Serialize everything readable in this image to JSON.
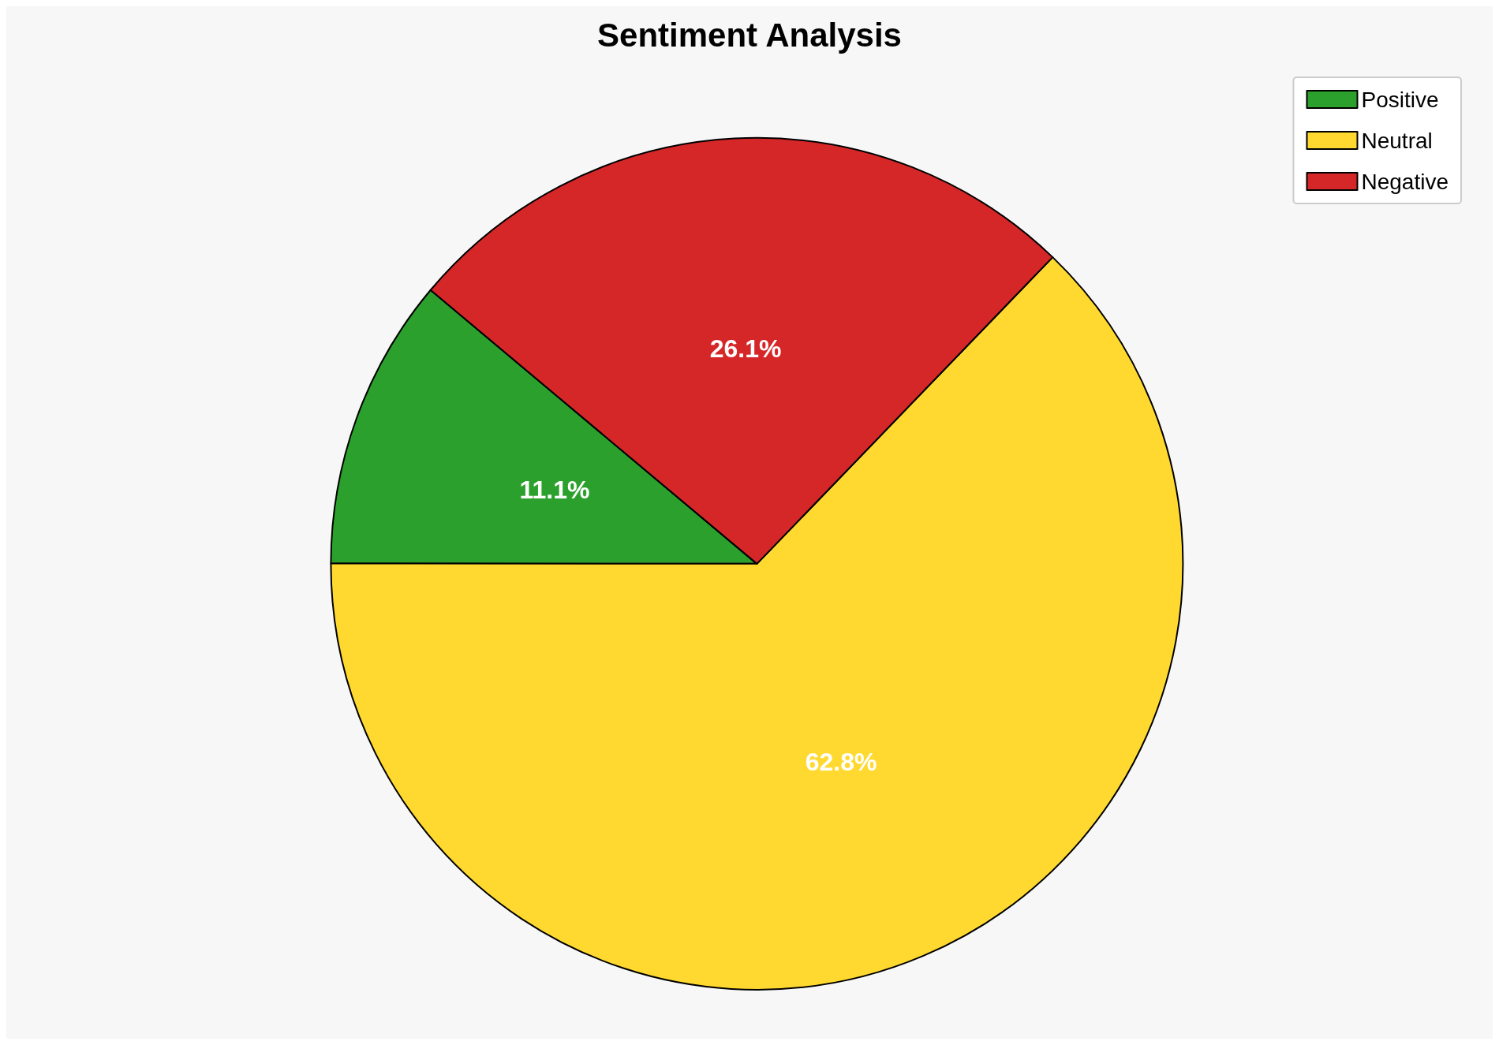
{
  "chart_data": {
    "type": "pie",
    "title": "Sentiment Analysis",
    "categories": [
      "Positive",
      "Neutral",
      "Negative"
    ],
    "values": [
      11.1,
      62.8,
      26.1
    ],
    "colors": [
      "#2ca02c",
      "#ffd92f",
      "#d62728"
    ],
    "value_labels": [
      "11.1%",
      "62.8%",
      "26.1%"
    ],
    "legend": "top right"
  }
}
